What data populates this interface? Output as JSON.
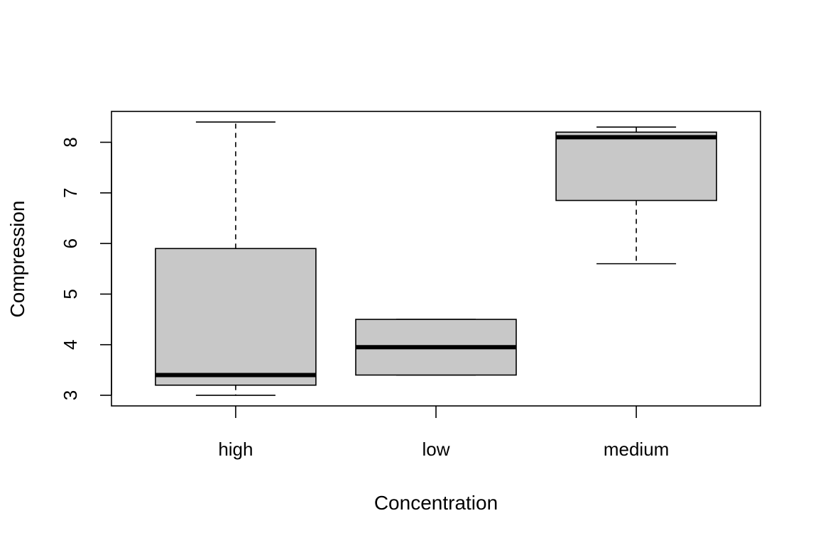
{
  "chart_data": {
    "type": "boxplot",
    "title": "",
    "xlabel": "Concentration",
    "ylabel": "Compression",
    "ylim": [
      2.79,
      8.61
    ],
    "yticks": [
      3,
      4,
      5,
      6,
      7,
      8
    ],
    "grid": false,
    "colors": {
      "box_fill": "#c8c8c8",
      "stroke": "#000000"
    },
    "categories": [
      "high",
      "low",
      "medium"
    ],
    "boxes": [
      {
        "category": "high",
        "min": 3.0,
        "q1": 3.2,
        "median": 3.4,
        "q3": 5.9,
        "max": 8.4
      },
      {
        "category": "low",
        "min": 3.4,
        "q1": 3.4,
        "median": 3.95,
        "q3": 4.5,
        "max": 4.5
      },
      {
        "category": "medium",
        "min": 5.6,
        "q1": 6.85,
        "median": 8.1,
        "q3": 8.2,
        "max": 8.3
      }
    ]
  }
}
